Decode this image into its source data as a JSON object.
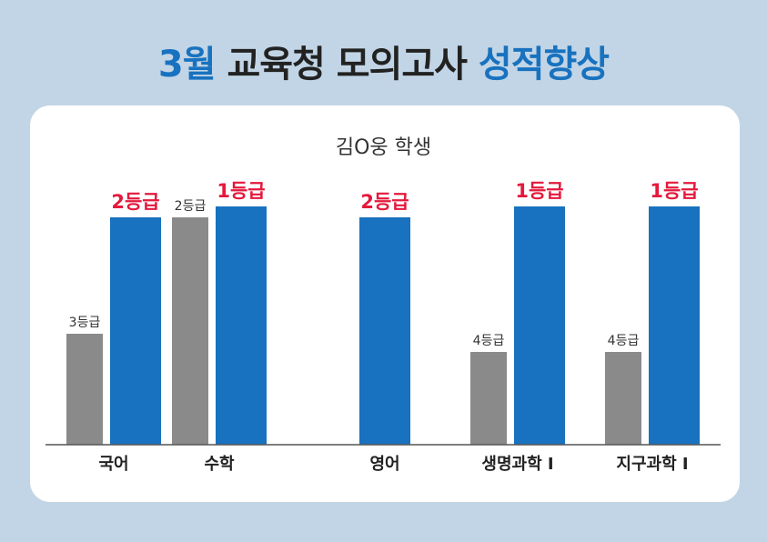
{
  "title": {
    "part1": "3월",
    "part2": " 교육청 모의고사 ",
    "part3": "성적향상"
  },
  "subtitle": "김O웅 학생",
  "colors": {
    "before": "#8a8a8a",
    "after": "#1872bf",
    "after_label": "#e4193c",
    "title_accent": "#1872bf",
    "background": "#c2d5e6"
  },
  "chart_data": {
    "type": "bar",
    "title": "김O웅 학생",
    "categories": [
      "국어",
      "수학",
      "영어",
      "생명과학 I",
      "지구과학 I"
    ],
    "series": [
      {
        "values": [
          3,
          2,
          null,
          4,
          4
        ],
        "labels": [
          "3등급",
          "2등급",
          "",
          "4등급",
          "4등급"
        ]
      },
      {
        "values": [
          2,
          1,
          2,
          1,
          1
        ],
        "labels": [
          "2등급",
          "1등급",
          "2등급",
          "1등급",
          "1등급"
        ]
      }
    ]
  }
}
